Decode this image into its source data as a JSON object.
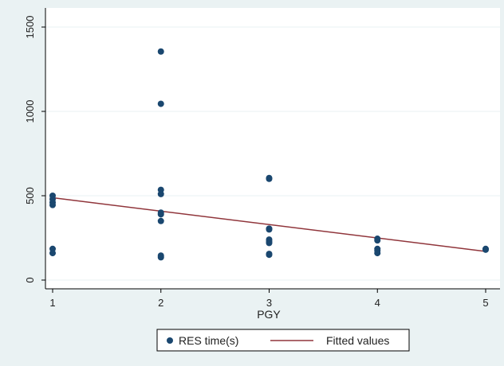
{
  "chart_data": {
    "type": "scatter",
    "xlabel": "PGY",
    "ylabel": "",
    "xlim": [
      1,
      5
    ],
    "ylim": [
      0,
      1500
    ],
    "x_ticks": [
      1,
      2,
      3,
      4,
      5
    ],
    "y_ticks": [
      0,
      500,
      1000,
      1500
    ],
    "grid": "horizontal",
    "legend_position": "bottom",
    "series": [
      {
        "name": "RES time(s)",
        "type": "scatter",
        "color": "#1a476f",
        "points": [
          [
            1,
            500
          ],
          [
            1,
            480
          ],
          [
            1,
            460
          ],
          [
            1,
            445
          ],
          [
            1,
            185
          ],
          [
            1,
            160
          ],
          [
            2,
            1355
          ],
          [
            2,
            1045
          ],
          [
            2,
            535
          ],
          [
            2,
            510
          ],
          [
            2,
            400
          ],
          [
            2,
            390
          ],
          [
            2,
            350
          ],
          [
            2,
            145
          ],
          [
            2,
            135
          ],
          [
            3,
            605
          ],
          [
            3,
            600
          ],
          [
            3,
            305
          ],
          [
            3,
            300
          ],
          [
            3,
            240
          ],
          [
            3,
            230
          ],
          [
            3,
            220
          ],
          [
            3,
            155
          ],
          [
            3,
            150
          ],
          [
            4,
            245
          ],
          [
            4,
            235
          ],
          [
            4,
            185
          ],
          [
            4,
            175
          ],
          [
            4,
            160
          ],
          [
            5,
            185
          ],
          [
            5,
            180
          ]
        ]
      },
      {
        "name": "Fitted values",
        "type": "line",
        "color": "#90353b",
        "points": [
          [
            1,
            488
          ],
          [
            5,
            170
          ]
        ]
      }
    ]
  }
}
